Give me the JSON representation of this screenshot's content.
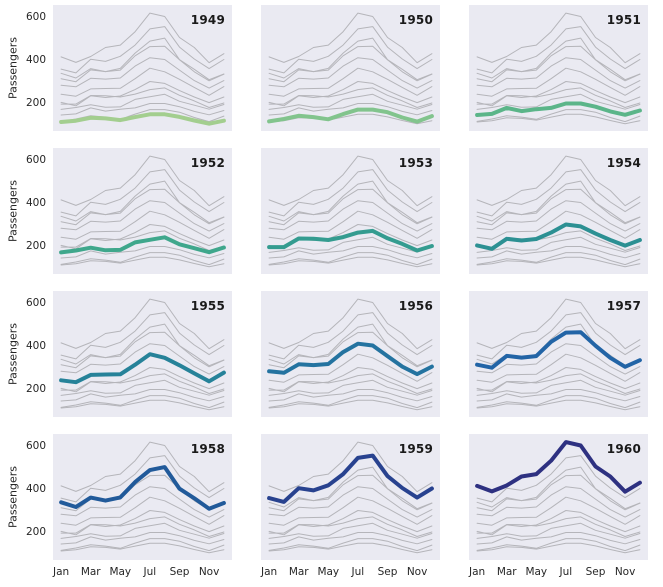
{
  "chart_data": {
    "type": "line",
    "title": "",
    "xlabel": "",
    "ylabel": "Passengers",
    "x": [
      "Jan",
      "Feb",
      "Mar",
      "Apr",
      "May",
      "Jun",
      "Jul",
      "Aug",
      "Sep",
      "Oct",
      "Nov",
      "Dec"
    ],
    "xtick_labels": [
      "Jan",
      "Mar",
      "May",
      "Jul",
      "Sep",
      "Nov"
    ],
    "xtick_indices": [
      0,
      2,
      4,
      6,
      8,
      10
    ],
    "yticks": [
      200,
      400,
      600
    ],
    "ylim": [
      70,
      660
    ],
    "xmargin": 0.55,
    "xrange": 12.1,
    "grid": false,
    "legend": "none",
    "facet_layout": {
      "rows": 4,
      "cols": 3,
      "facet_by": "year"
    },
    "background_lines_color": "#b5b5ba",
    "facet_background": "#eaeaf2",
    "text_color": "#262626",
    "year_label_color": "#1a1a1a",
    "series": [
      {
        "name": "1949",
        "highlight_color": "#a3ce8f",
        "values": [
          112,
          118,
          132,
          129,
          121,
          135,
          148,
          148,
          136,
          119,
          104,
          118
        ]
      },
      {
        "name": "1950",
        "highlight_color": "#82c48d",
        "values": [
          115,
          126,
          141,
          135,
          125,
          149,
          170,
          170,
          158,
          133,
          114,
          140
        ]
      },
      {
        "name": "1951",
        "highlight_color": "#5bb589",
        "values": [
          145,
          150,
          178,
          163,
          172,
          178,
          199,
          199,
          184,
          162,
          146,
          166
        ]
      },
      {
        "name": "1952",
        "highlight_color": "#3fa78c",
        "values": [
          171,
          180,
          193,
          181,
          183,
          218,
          230,
          242,
          209,
          191,
          172,
          194
        ]
      },
      {
        "name": "1953",
        "highlight_color": "#349c90",
        "values": [
          196,
          196,
          236,
          235,
          229,
          243,
          264,
          272,
          237,
          211,
          180,
          201
        ]
      },
      {
        "name": "1954",
        "highlight_color": "#2c9093",
        "values": [
          204,
          188,
          235,
          227,
          234,
          264,
          302,
          293,
          259,
          229,
          203,
          229
        ]
      },
      {
        "name": "1955",
        "highlight_color": "#268299",
        "values": [
          242,
          233,
          267,
          269,
          270,
          315,
          364,
          347,
          312,
          274,
          237,
          278
        ]
      },
      {
        "name": "1956",
        "highlight_color": "#2473a0",
        "values": [
          284,
          277,
          317,
          313,
          318,
          374,
          413,
          405,
          355,
          306,
          271,
          306
        ]
      },
      {
        "name": "1957",
        "highlight_color": "#2264a6",
        "values": [
          315,
          301,
          356,
          348,
          355,
          422,
          465,
          467,
          404,
          347,
          305,
          336
        ]
      },
      {
        "name": "1958",
        "highlight_color": "#215a9a",
        "values": [
          340,
          318,
          362,
          348,
          363,
          435,
          491,
          505,
          404,
          359,
          310,
          337
        ]
      },
      {
        "name": "1959",
        "highlight_color": "#28428f",
        "values": [
          360,
          342,
          406,
          396,
          420,
          472,
          548,
          559,
          463,
          407,
          362,
          405
        ]
      },
      {
        "name": "1960",
        "highlight_color": "#2e3181",
        "values": [
          417,
          391,
          419,
          461,
          472,
          535,
          622,
          606,
          508,
          461,
          390,
          432
        ]
      }
    ]
  }
}
